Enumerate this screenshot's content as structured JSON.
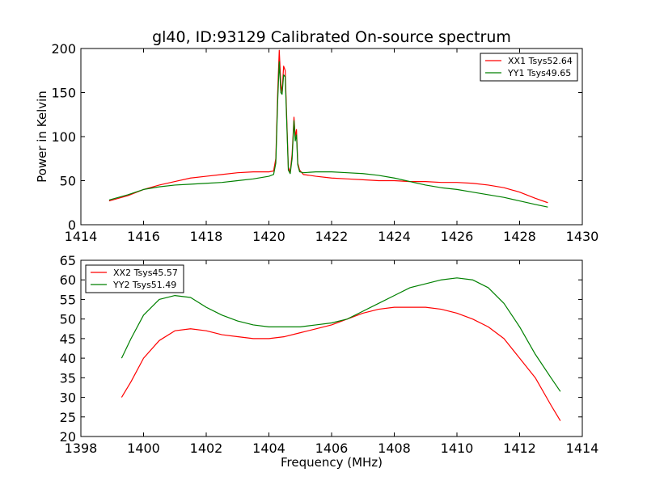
{
  "chart_data": [
    {
      "type": "line",
      "title": "gl40, ID:93129 Calibrated On-source spectrum",
      "xlabel": "",
      "ylabel": "Power in Kelvin",
      "xlim": [
        1414,
        1430
      ],
      "ylim": [
        0,
        200
      ],
      "xticks": [
        1414,
        1416,
        1418,
        1420,
        1422,
        1424,
        1426,
        1428,
        1430
      ],
      "yticks": [
        0,
        50,
        100,
        150,
        200
      ],
      "grid": false,
      "legend": "top-right",
      "series": [
        {
          "name": "XX1 Tsys52.64",
          "color": "#ff0000",
          "x": [
            1414.9,
            1415.5,
            1416.0,
            1416.5,
            1417.0,
            1417.5,
            1418.0,
            1418.5,
            1419.0,
            1419.5,
            1420.0,
            1420.15,
            1420.22,
            1420.28,
            1420.33,
            1420.38,
            1420.42,
            1420.47,
            1420.52,
            1420.57,
            1420.62,
            1420.68,
            1420.74,
            1420.8,
            1420.84,
            1420.88,
            1420.92,
            1420.98,
            1421.1,
            1421.5,
            1422.0,
            1422.5,
            1423.0,
            1423.5,
            1424.0,
            1424.5,
            1425.0,
            1425.5,
            1426.0,
            1426.5,
            1427.0,
            1427.5,
            1428.0,
            1428.5,
            1428.9
          ],
          "y": [
            27,
            33,
            40,
            45,
            49,
            53,
            55,
            57,
            59,
            60,
            60,
            61,
            75,
            150,
            198,
            160,
            150,
            180,
            175,
            120,
            65,
            60,
            80,
            122,
            100,
            108,
            70,
            62,
            57,
            55,
            53,
            52,
            51,
            50,
            50,
            49,
            49,
            48,
            48,
            47,
            45,
            42,
            37,
            30,
            25
          ]
        },
        {
          "name": "YY1 Tsys49.65",
          "color": "#008000",
          "x": [
            1414.9,
            1415.5,
            1416.0,
            1416.5,
            1417.0,
            1417.5,
            1418.0,
            1418.5,
            1419.0,
            1419.5,
            1420.0,
            1420.15,
            1420.22,
            1420.28,
            1420.33,
            1420.38,
            1420.42,
            1420.47,
            1420.52,
            1420.57,
            1420.62,
            1420.68,
            1420.74,
            1420.8,
            1420.84,
            1420.88,
            1420.92,
            1420.98,
            1421.1,
            1421.5,
            1422.0,
            1422.5,
            1423.0,
            1423.5,
            1424.0,
            1424.5,
            1425.0,
            1425.5,
            1426.0,
            1426.5,
            1427.0,
            1427.5,
            1428.0,
            1428.5,
            1428.9
          ],
          "y": [
            28,
            34,
            40,
            43,
            45,
            46,
            47,
            48,
            50,
            52,
            55,
            57,
            70,
            140,
            185,
            150,
            148,
            170,
            168,
            115,
            62,
            58,
            75,
            118,
            95,
            102,
            68,
            60,
            59,
            60,
            60,
            59,
            58,
            56,
            53,
            49,
            45,
            42,
            40,
            37,
            34,
            31,
            27,
            23,
            20
          ]
        }
      ]
    },
    {
      "type": "line",
      "title": "",
      "xlabel": "Frequency (MHz)",
      "ylabel": "",
      "xlim": [
        1398,
        1414
      ],
      "ylim": [
        20,
        65
      ],
      "xticks": [
        1398,
        1400,
        1402,
        1404,
        1406,
        1408,
        1410,
        1412,
        1414
      ],
      "yticks": [
        20,
        25,
        30,
        35,
        40,
        45,
        50,
        55,
        60,
        65
      ],
      "grid": false,
      "legend": "top-left",
      "series": [
        {
          "name": "XX2 Tsys45.57",
          "color": "#ff0000",
          "x": [
            1399.3,
            1399.6,
            1400.0,
            1400.5,
            1401.0,
            1401.5,
            1402.0,
            1402.5,
            1403.0,
            1403.5,
            1404.0,
            1404.5,
            1405.0,
            1405.5,
            1406.0,
            1406.5,
            1407.0,
            1407.5,
            1408.0,
            1408.5,
            1409.0,
            1409.5,
            1410.0,
            1410.5,
            1411.0,
            1411.5,
            1412.0,
            1412.5,
            1413.0,
            1413.3
          ],
          "y": [
            30,
            34,
            40,
            44.5,
            47,
            47.5,
            47,
            46,
            45.5,
            45,
            45,
            45.5,
            46.5,
            47.5,
            48.5,
            50,
            51.5,
            52.5,
            53,
            53,
            53,
            52.5,
            51.5,
            50,
            48,
            45,
            40,
            35,
            28,
            24
          ]
        },
        {
          "name": "YY2 Tsys51.49",
          "color": "#008000",
          "x": [
            1399.3,
            1399.6,
            1400.0,
            1400.5,
            1401.0,
            1401.5,
            1402.0,
            1402.5,
            1403.0,
            1403.5,
            1404.0,
            1404.5,
            1405.0,
            1405.5,
            1406.0,
            1406.5,
            1407.0,
            1407.5,
            1408.0,
            1408.5,
            1409.0,
            1409.5,
            1410.0,
            1410.5,
            1411.0,
            1411.5,
            1412.0,
            1412.5,
            1413.0,
            1413.3
          ],
          "y": [
            40,
            45,
            51,
            55,
            56,
            55.5,
            53,
            51,
            49.5,
            48.5,
            48,
            48,
            48,
            48.5,
            49,
            50,
            52,
            54,
            56,
            58,
            59,
            60,
            60.5,
            60,
            58,
            54,
            48,
            41,
            35,
            31.5
          ]
        }
      ]
    }
  ]
}
